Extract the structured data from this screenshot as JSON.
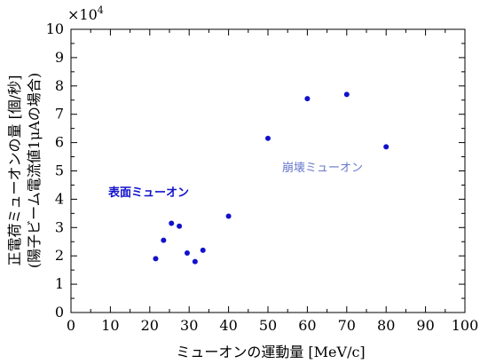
{
  "chart_data": {
    "type": "scatter",
    "xlabel": "ミューオンの運動量 [MeV/c]",
    "ylabel_line1": "正電荷ミューオンの量 [個/秒]",
    "ylabel_line2": "(陽子ビーム電流値1μAの場合)",
    "y_multiplier": "×10",
    "y_multiplier_exp": "4",
    "xlim": [
      0,
      100
    ],
    "ylim": [
      0,
      10
    ],
    "xticks": [
      "0",
      "10",
      "20",
      "30",
      "40",
      "50",
      "60",
      "70",
      "80",
      "90",
      "100"
    ],
    "yticks": [
      "0",
      "1",
      "2",
      "3",
      "4",
      "5",
      "6",
      "7",
      "8",
      "9",
      "10"
    ],
    "grid": false,
    "marker_color": "#1111cc",
    "series": [
      {
        "annotation": "表面ミューオン",
        "annotation_color": "#1111cc",
        "points": [
          {
            "x": 21.5,
            "y": 1.9
          },
          {
            "x": 23.5,
            "y": 2.55
          },
          {
            "x": 25.5,
            "y": 3.15
          },
          {
            "x": 27.5,
            "y": 3.05
          },
          {
            "x": 29.5,
            "y": 2.1
          },
          {
            "x": 31.5,
            "y": 1.8
          },
          {
            "x": 33.5,
            "y": 2.2
          },
          {
            "x": 40,
            "y": 3.4
          }
        ]
      },
      {
        "annotation": "崩壊ミューオン",
        "annotation_color": "#6677cc",
        "points": [
          {
            "x": 50,
            "y": 6.15
          },
          {
            "x": 60,
            "y": 7.55
          },
          {
            "x": 70,
            "y": 7.7
          },
          {
            "x": 80,
            "y": 5.85
          }
        ]
      }
    ]
  }
}
